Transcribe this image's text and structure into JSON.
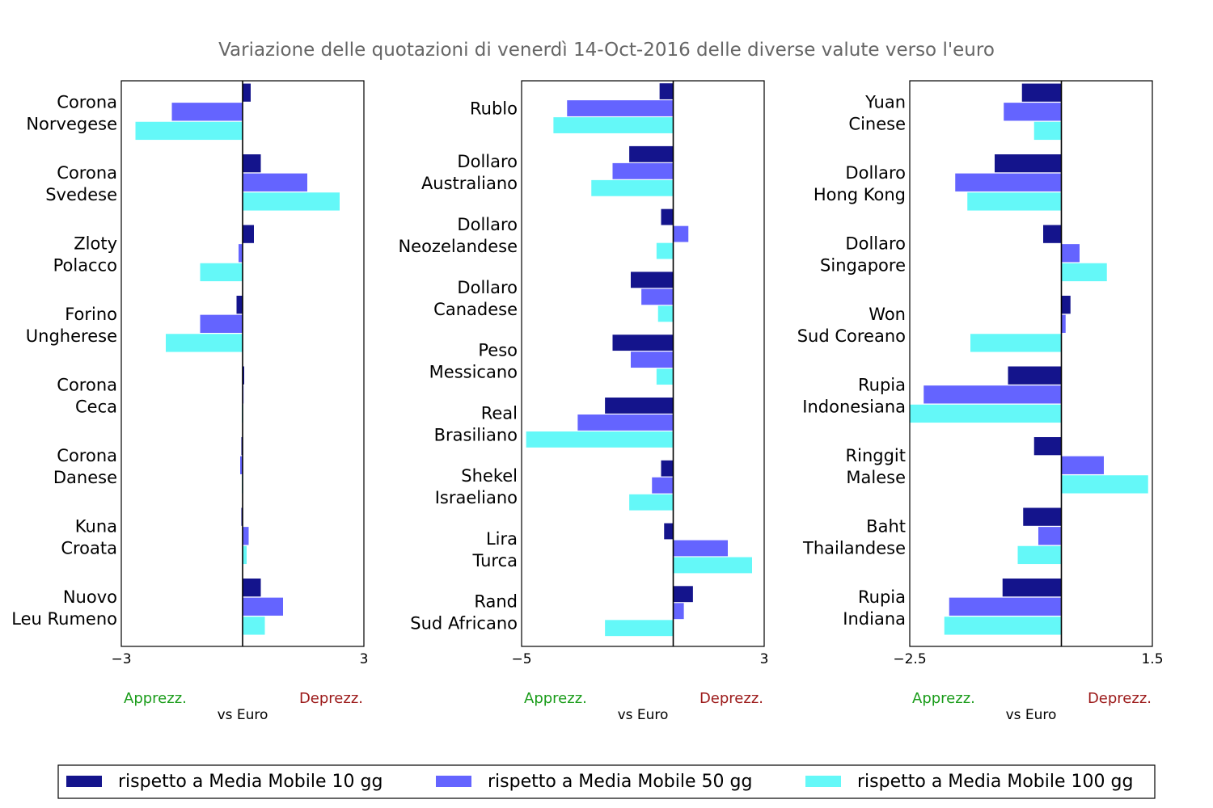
{
  "title": "Variazione delle quotazioni di venerdì 14-Oct-2016 delle diverse valute verso l'euro",
  "colors": {
    "ma10": "#14148c",
    "ma50": "#6464ff",
    "ma100": "#64f8f8",
    "apprezz": "#1a9c1a",
    "deprezz": "#9c1a1a",
    "title": "#666666"
  },
  "legend": {
    "items": [
      {
        "key": "ma10",
        "label": "rispetto a Media Mobile 10 gg"
      },
      {
        "key": "ma50",
        "label": "rispetto a Media Mobile 50 gg"
      },
      {
        "key": "ma100",
        "label": "rispetto a Media Mobile 100 gg"
      }
    ]
  },
  "chart_data": [
    {
      "type": "bar",
      "orientation": "horizontal",
      "xlim": [
        -3,
        3
      ],
      "xticks": [
        {
          "v": -3,
          "label": "−3"
        },
        {
          "v": 3,
          "label": "3"
        }
      ],
      "xlabel": "vs Euro",
      "left_note": "Apprezz.",
      "right_note": "Deprezz.",
      "categories": [
        {
          "line1": "Corona",
          "line2": "Norvegese",
          "values": [
            0.2,
            -1.75,
            -2.65
          ]
        },
        {
          "line1": "Corona",
          "line2": "Svedese",
          "values": [
            0.45,
            1.6,
            2.4
          ]
        },
        {
          "line1": "Zloty",
          "line2": "Polacco",
          "values": [
            0.28,
            -0.1,
            -1.05
          ]
        },
        {
          "line1": "Forino",
          "line2": "Ungherese",
          "values": [
            -0.15,
            -1.05,
            -1.9
          ]
        },
        {
          "line1": "Corona",
          "line2": "Ceca",
          "values": [
            0.04,
            0.02,
            -0.02
          ]
        },
        {
          "line1": "Corona",
          "line2": "Danese",
          "values": [
            -0.03,
            -0.06,
            -0.02
          ]
        },
        {
          "line1": "Kuna",
          "line2": "Croata",
          "values": [
            -0.03,
            0.15,
            0.1
          ]
        },
        {
          "line1": "Nuovo",
          "line2": "Leu Rumeno",
          "values": [
            0.45,
            1.0,
            0.55
          ]
        }
      ]
    },
    {
      "type": "bar",
      "orientation": "horizontal",
      "xlim": [
        -5,
        3
      ],
      "xticks": [
        {
          "v": -5,
          "label": "−5"
        },
        {
          "v": 3,
          "label": "3"
        }
      ],
      "xlabel": "vs Euro",
      "left_note": "Apprezz.",
      "right_note": "Deprezz.",
      "categories": [
        {
          "line1": "Rublo",
          "line2": "",
          "values": [
            -0.45,
            -3.5,
            -3.95
          ]
        },
        {
          "line1": "Dollaro",
          "line2": "Australiano",
          "values": [
            -1.45,
            -2.0,
            -2.7
          ]
        },
        {
          "line1": "Dollaro",
          "line2": "Neozelandese",
          "values": [
            -0.4,
            0.5,
            -0.55
          ]
        },
        {
          "line1": "Dollaro",
          "line2": "Canadese",
          "values": [
            -1.4,
            -1.05,
            -0.5
          ]
        },
        {
          "line1": "Peso",
          "line2": "Messicano",
          "values": [
            -2.0,
            -1.4,
            -0.55
          ]
        },
        {
          "line1": "Real",
          "line2": "Brasiliano",
          "values": [
            -2.25,
            -3.15,
            -4.85
          ]
        },
        {
          "line1": "Shekel",
          "line2": "Israeliano",
          "values": [
            -0.4,
            -0.7,
            -1.45
          ]
        },
        {
          "line1": "Lira",
          "line2": "Turca",
          "values": [
            -0.3,
            1.8,
            2.6
          ]
        },
        {
          "line1": "Rand",
          "line2": "Sud Africano",
          "values": [
            0.65,
            0.35,
            -2.25
          ]
        }
      ]
    },
    {
      "type": "bar",
      "orientation": "horizontal",
      "xlim": [
        -2.5,
        1.5
      ],
      "xticks": [
        {
          "v": -2.5,
          "label": "−2.5"
        },
        {
          "v": 1.5,
          "label": "1.5"
        }
      ],
      "xlabel": "vs Euro",
      "left_note": "Apprezz.",
      "right_note": "Deprezz.",
      "categories": [
        {
          "line1": "Yuan",
          "line2": "Cinese",
          "values": [
            -0.65,
            -0.95,
            -0.45
          ]
        },
        {
          "line1": "Dollaro",
          "line2": "Hong Kong",
          "values": [
            -1.1,
            -1.75,
            -1.55
          ]
        },
        {
          "line1": "Dollaro",
          "line2": "Singapore",
          "values": [
            -0.3,
            0.3,
            0.75
          ]
        },
        {
          "line1": "Won",
          "line2": "Sud Coreano",
          "values": [
            0.15,
            0.07,
            -1.5
          ]
        },
        {
          "line1": "Rupia",
          "line2": "Indonesiana",
          "values": [
            -0.88,
            -2.27,
            -2.5
          ]
        },
        {
          "line1": "Ringgit",
          "line2": "Malese",
          "values": [
            -0.45,
            0.7,
            1.43
          ]
        },
        {
          "line1": "Baht",
          "line2": "Thailandese",
          "values": [
            -0.63,
            -0.38,
            -0.72
          ]
        },
        {
          "line1": "Rupia",
          "line2": "Indiana",
          "values": [
            -0.97,
            -1.85,
            -1.93
          ]
        }
      ]
    }
  ]
}
